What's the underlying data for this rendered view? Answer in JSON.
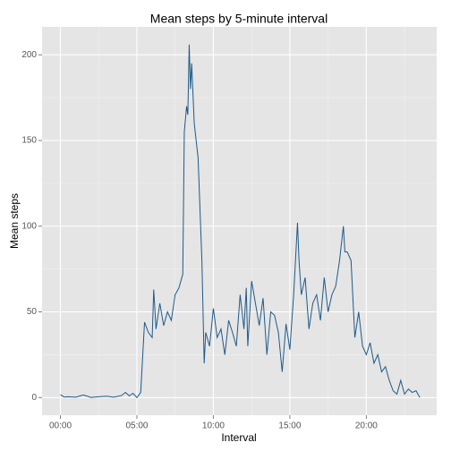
{
  "chart_data": {
    "type": "line",
    "title": "Mean steps by 5-minute interval",
    "x_label": "Interval",
    "y_label": "Mean steps",
    "x": [
      0,
      0.25,
      0.5,
      1,
      1.5,
      2,
      2.5,
      3,
      3.5,
      4,
      4.25,
      4.5,
      4.75,
      5,
      5.25,
      5.5,
      5.75,
      6,
      6.1,
      6.25,
      6.5,
      6.75,
      7,
      7.25,
      7.5,
      7.75,
      8,
      8.1,
      8.25,
      8.33,
      8.42,
      8.5,
      8.58,
      8.75,
      9,
      9.25,
      9.4,
      9.5,
      9.75,
      10,
      10.25,
      10.5,
      10.75,
      11,
      11.25,
      11.5,
      11.75,
      12,
      12.15,
      12.25,
      12.5,
      12.75,
      13,
      13.25,
      13.5,
      13.75,
      14,
      14.25,
      14.5,
      14.75,
      15,
      15.25,
      15.5,
      15.6,
      15.75,
      16,
      16.25,
      16.5,
      16.75,
      17,
      17.25,
      17.5,
      17.75,
      18,
      18.25,
      18.5,
      18.6,
      18.75,
      19,
      19.25,
      19.5,
      19.75,
      20,
      20.25,
      20.5,
      20.75,
      21,
      21.25,
      21.5,
      21.75,
      22,
      22.25,
      22.5,
      22.75,
      23,
      23.25,
      23.5
    ],
    "series": [
      {
        "name": "Mean steps",
        "color": "#1f5a8a",
        "values": [
          1.7,
          0.3,
          0.5,
          0.2,
          1.5,
          0.1,
          0.5,
          0.8,
          0.2,
          1.2,
          3,
          1,
          2.5,
          0,
          3,
          44,
          38,
          35,
          63,
          40,
          55,
          42,
          50,
          45,
          60,
          64,
          72,
          155,
          170,
          165,
          206,
          180,
          195,
          160,
          140,
          80,
          20,
          38,
          30,
          52,
          35,
          40,
          25,
          45,
          38,
          30,
          60,
          40,
          64,
          30,
          68,
          55,
          42,
          58,
          25,
          50,
          48,
          38,
          15,
          43,
          28,
          60,
          102,
          80,
          60,
          70,
          40,
          55,
          60,
          45,
          70,
          50,
          60,
          65,
          80,
          100,
          85,
          85,
          80,
          35,
          50,
          30,
          25,
          32,
          20,
          25,
          15,
          18,
          10,
          4,
          2,
          10,
          2,
          5,
          3,
          4,
          0
        ]
      }
    ],
    "xlim": [
      -1.2,
      24.6
    ],
    "ylim": [
      -10.3,
      216.3
    ],
    "xticks": [
      {
        "value": 0,
        "label": "00:00"
      },
      {
        "value": 5,
        "label": "05:00"
      },
      {
        "value": 10,
        "label": "10:00"
      },
      {
        "value": 15,
        "label": "15:00"
      },
      {
        "value": 20,
        "label": "20:00"
      }
    ],
    "yticks": [
      0,
      50,
      100,
      150,
      200
    ],
    "xminor": [
      2.5,
      7.5,
      12.5,
      17.5,
      22.5
    ],
    "yminor": [
      25,
      75,
      125,
      175
    ],
    "grid": true
  }
}
